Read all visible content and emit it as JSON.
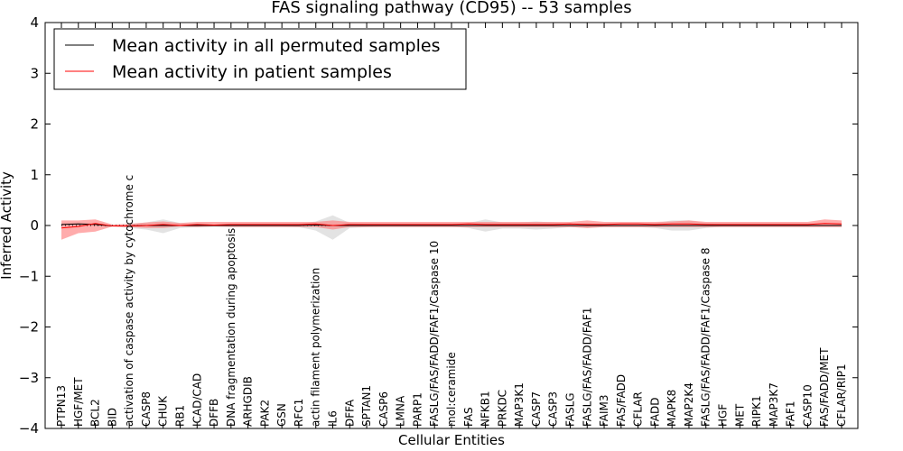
{
  "chart_data": {
    "type": "line",
    "title": "FAS signaling pathway (CD95) -- 53 samples",
    "xlabel": "Cellular Entities",
    "ylabel": "Inferred Activity",
    "ylim": [
      -4,
      4
    ],
    "yticks": [
      "4",
      "3",
      "2",
      "1",
      "0",
      "−1",
      "−2",
      "−3",
      "−4"
    ],
    "ytick_values": [
      4,
      3,
      2,
      1,
      0,
      -1,
      -2,
      -3,
      -4
    ],
    "legend_position": "top-left",
    "colors": {
      "permuted": "#000000",
      "patient": "#ff0000",
      "patient_band": "#ff8080",
      "permuted_band": "#c8c8c8"
    },
    "categories": [
      "PTPN13",
      "HGF/MET",
      "BCL2",
      "BID",
      "activation of caspase activity by cytochrome c",
      "CASP8",
      "CHUK",
      "RB1",
      "ICAD/CAD",
      "DFFB",
      "DNA fragmentation during apoptosis",
      "ARHGDIB",
      "PAK2",
      "GSN",
      "RFC1",
      "actin filament polymerization",
      "IL6",
      "DFFA",
      "SPTAN1",
      "CASP6",
      "LMNA",
      "PARP1",
      "FASLG/FAS/FADD/FAF1/Caspase 10",
      "mol:ceramide",
      "FAS",
      "NFKB1",
      "PRKDC",
      "MAP3K1",
      "CASP7",
      "CASP3",
      "FASLG",
      "FASLG/FAS/FADD/FAF1",
      "FAIM3",
      "FAS/FADD",
      "CFLAR",
      "FADD",
      "MAPK8",
      "MAP2K4",
      "FASLG/FAS/FADD/FAF1/Caspase 8",
      "HGF",
      "MET",
      "RIPK1",
      "MAP3K7",
      "FAF1",
      "CASP10",
      "FAS/FADD/MET",
      "CFLAR/RIP1"
    ],
    "series": [
      {
        "name": "Mean activity in all permuted samples",
        "values": [
          0.02,
          0.03,
          0.02,
          -0.01,
          -0.01,
          0.0,
          0.0,
          0.0,
          0.0,
          0.0,
          0.0,
          0.0,
          0.0,
          0.0,
          0.0,
          0.01,
          0.0,
          0.0,
          0.0,
          0.0,
          0.0,
          0.0,
          0.0,
          0.0,
          0.0,
          0.0,
          0.0,
          0.0,
          0.0,
          0.0,
          0.0,
          0.0,
          0.0,
          0.0,
          0.0,
          0.0,
          0.0,
          0.0,
          0.0,
          0.0,
          0.0,
          0.0,
          0.0,
          0.0,
          0.0,
          0.0,
          0.0
        ],
        "lower": [
          0.0,
          0.0,
          0.0,
          -0.02,
          -0.05,
          -0.08,
          -0.15,
          -0.05,
          -0.03,
          -0.02,
          -0.02,
          -0.02,
          -0.02,
          -0.02,
          -0.03,
          -0.1,
          -0.28,
          -0.05,
          -0.03,
          -0.02,
          -0.02,
          -0.02,
          -0.02,
          -0.02,
          -0.05,
          -0.12,
          -0.06,
          -0.06,
          -0.08,
          -0.06,
          -0.03,
          -0.05,
          -0.03,
          -0.03,
          -0.03,
          -0.05,
          -0.1,
          -0.1,
          -0.05,
          -0.02,
          -0.02,
          -0.02,
          -0.02,
          -0.02,
          -0.02,
          -0.02,
          -0.02
        ],
        "upper": [
          0.05,
          0.06,
          0.04,
          0.0,
          0.03,
          0.06,
          0.12,
          0.05,
          0.03,
          0.02,
          0.02,
          0.02,
          0.02,
          0.02,
          0.03,
          0.08,
          0.2,
          0.05,
          0.03,
          0.02,
          0.02,
          0.02,
          0.02,
          0.02,
          0.05,
          0.12,
          0.06,
          0.06,
          0.08,
          0.06,
          0.03,
          0.05,
          0.03,
          0.03,
          0.03,
          0.05,
          0.1,
          0.1,
          0.05,
          0.02,
          0.02,
          0.02,
          0.02,
          0.02,
          0.02,
          0.02,
          0.02
        ]
      },
      {
        "name": "Mean activity in patient samples",
        "values": [
          -0.05,
          -0.02,
          0.04,
          -0.01,
          -0.01,
          0.0,
          0.02,
          0.0,
          0.02,
          0.01,
          0.02,
          0.02,
          0.02,
          0.02,
          0.02,
          0.03,
          0.0,
          0.02,
          0.02,
          0.02,
          0.02,
          0.02,
          0.02,
          0.02,
          0.03,
          0.02,
          0.02,
          0.02,
          0.02,
          0.02,
          0.03,
          0.02,
          0.02,
          0.03,
          0.03,
          0.02,
          0.03,
          0.03,
          0.02,
          0.02,
          0.02,
          0.02,
          0.02,
          0.02,
          0.02,
          0.04,
          0.03
        ],
        "lower": [
          -0.28,
          -0.15,
          -0.12,
          -0.02,
          -0.03,
          -0.05,
          -0.05,
          -0.02,
          -0.03,
          -0.02,
          -0.03,
          -0.03,
          -0.03,
          -0.03,
          -0.03,
          -0.03,
          -0.08,
          -0.03,
          -0.03,
          -0.03,
          -0.03,
          -0.03,
          -0.03,
          -0.03,
          -0.03,
          -0.03,
          -0.03,
          -0.03,
          -0.03,
          -0.03,
          -0.03,
          -0.05,
          -0.03,
          -0.03,
          -0.03,
          -0.03,
          -0.03,
          -0.03,
          -0.03,
          -0.03,
          -0.03,
          -0.03,
          -0.03,
          -0.03,
          -0.03,
          -0.03,
          -0.03
        ],
        "upper": [
          0.1,
          0.1,
          0.12,
          0.02,
          0.03,
          0.06,
          0.08,
          0.05,
          0.07,
          0.07,
          0.07,
          0.07,
          0.07,
          0.07,
          0.07,
          0.07,
          0.1,
          0.07,
          0.07,
          0.07,
          0.07,
          0.07,
          0.07,
          0.07,
          0.07,
          0.07,
          0.07,
          0.07,
          0.07,
          0.07,
          0.07,
          0.1,
          0.07,
          0.07,
          0.07,
          0.07,
          0.08,
          0.1,
          0.07,
          0.07,
          0.07,
          0.07,
          0.07,
          0.07,
          0.07,
          0.12,
          0.1
        ]
      }
    ]
  }
}
